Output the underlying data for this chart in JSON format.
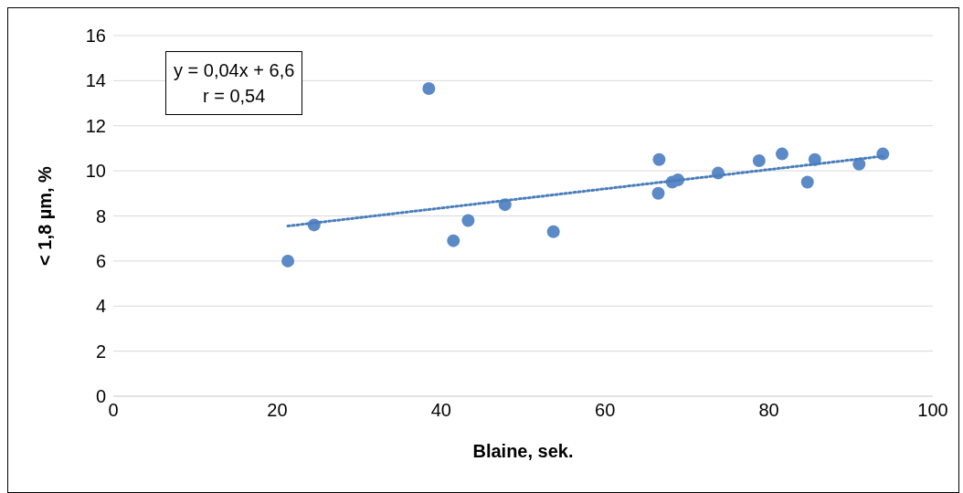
{
  "chart_data": {
    "type": "scatter",
    "xlabel": "Blaine, sek.",
    "ylabel": "< 1,8 µm, %",
    "xlim": [
      0,
      100
    ],
    "xticks": [
      0,
      20,
      40,
      60,
      80,
      100
    ],
    "ylim": [
      0,
      16
    ],
    "yticks": [
      0,
      2,
      4,
      6,
      8,
      10,
      12,
      14,
      16
    ],
    "grid": "y",
    "marker": "circle",
    "annotations": [
      "y = 0,04x + 6,6",
      "r = 0,54"
    ],
    "series": [
      {
        "color": "#5b8ac6",
        "x": [
          21.3,
          24.5,
          38.5,
          41.5,
          43.3,
          47.8,
          53.7,
          66.6,
          66.5,
          68.2,
          68.9,
          73.8,
          78.8,
          81.6,
          84.7,
          85.6,
          91.0,
          93.9
        ],
        "values": [
          6.0,
          7.6,
          13.65,
          6.9,
          7.8,
          8.5,
          7.3,
          10.5,
          9.0,
          9.5,
          9.6,
          9.9,
          10.45,
          10.75,
          9.5,
          10.5,
          10.3,
          10.75
        ]
      },
      {
        "type": "line",
        "color": "#4a7ebb",
        "marker": "none",
        "line_style": "dotted",
        "x": [
          21.3,
          93.9
        ],
        "values": [
          7.55,
          10.65
        ]
      }
    ]
  }
}
